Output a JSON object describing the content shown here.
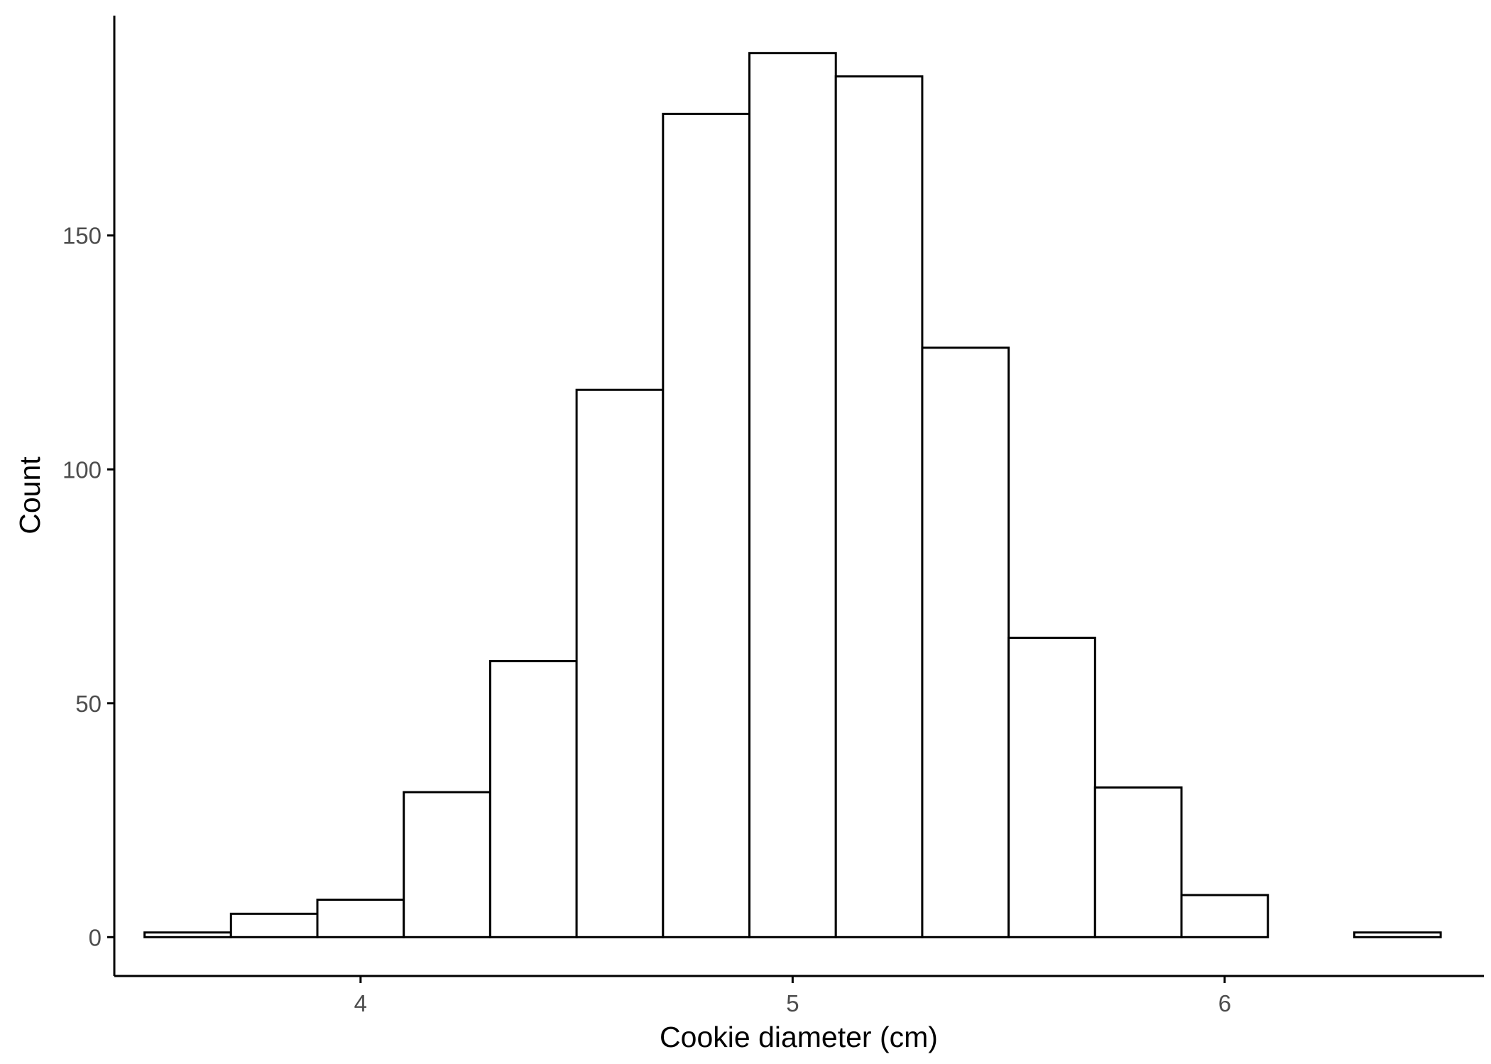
{
  "chart_data": {
    "type": "bar",
    "subtype": "histogram",
    "xlabel": "Cookie diameter (cm)",
    "ylabel": "Count",
    "xlim": [
      3.43,
      6.6
    ],
    "ylim": [
      -8.3,
      197
    ],
    "x_ticks": [
      4,
      5,
      6
    ],
    "y_ticks": [
      0,
      50,
      100,
      150
    ],
    "grid": false,
    "legend": "none",
    "bar_fill": "#ffffff",
    "bar_outline": "#000000",
    "bins": [
      {
        "start": 3.5,
        "end": 3.7,
        "count": 1
      },
      {
        "start": 3.7,
        "end": 3.9,
        "count": 5
      },
      {
        "start": 3.9,
        "end": 4.1,
        "count": 8
      },
      {
        "start": 4.1,
        "end": 4.3,
        "count": 31
      },
      {
        "start": 4.3,
        "end": 4.5,
        "count": 59
      },
      {
        "start": 4.5,
        "end": 4.7,
        "count": 117
      },
      {
        "start": 4.7,
        "end": 4.9,
        "count": 176
      },
      {
        "start": 4.9,
        "end": 5.1,
        "count": 189
      },
      {
        "start": 5.1,
        "end": 5.3,
        "count": 184
      },
      {
        "start": 5.3,
        "end": 5.5,
        "count": 126
      },
      {
        "start": 5.5,
        "end": 5.7,
        "count": 64
      },
      {
        "start": 5.7,
        "end": 5.9,
        "count": 32
      },
      {
        "start": 5.9,
        "end": 6.1,
        "count": 9
      },
      {
        "start": 6.1,
        "end": 6.3,
        "count": 0
      },
      {
        "start": 6.3,
        "end": 6.5,
        "count": 1
      }
    ]
  }
}
